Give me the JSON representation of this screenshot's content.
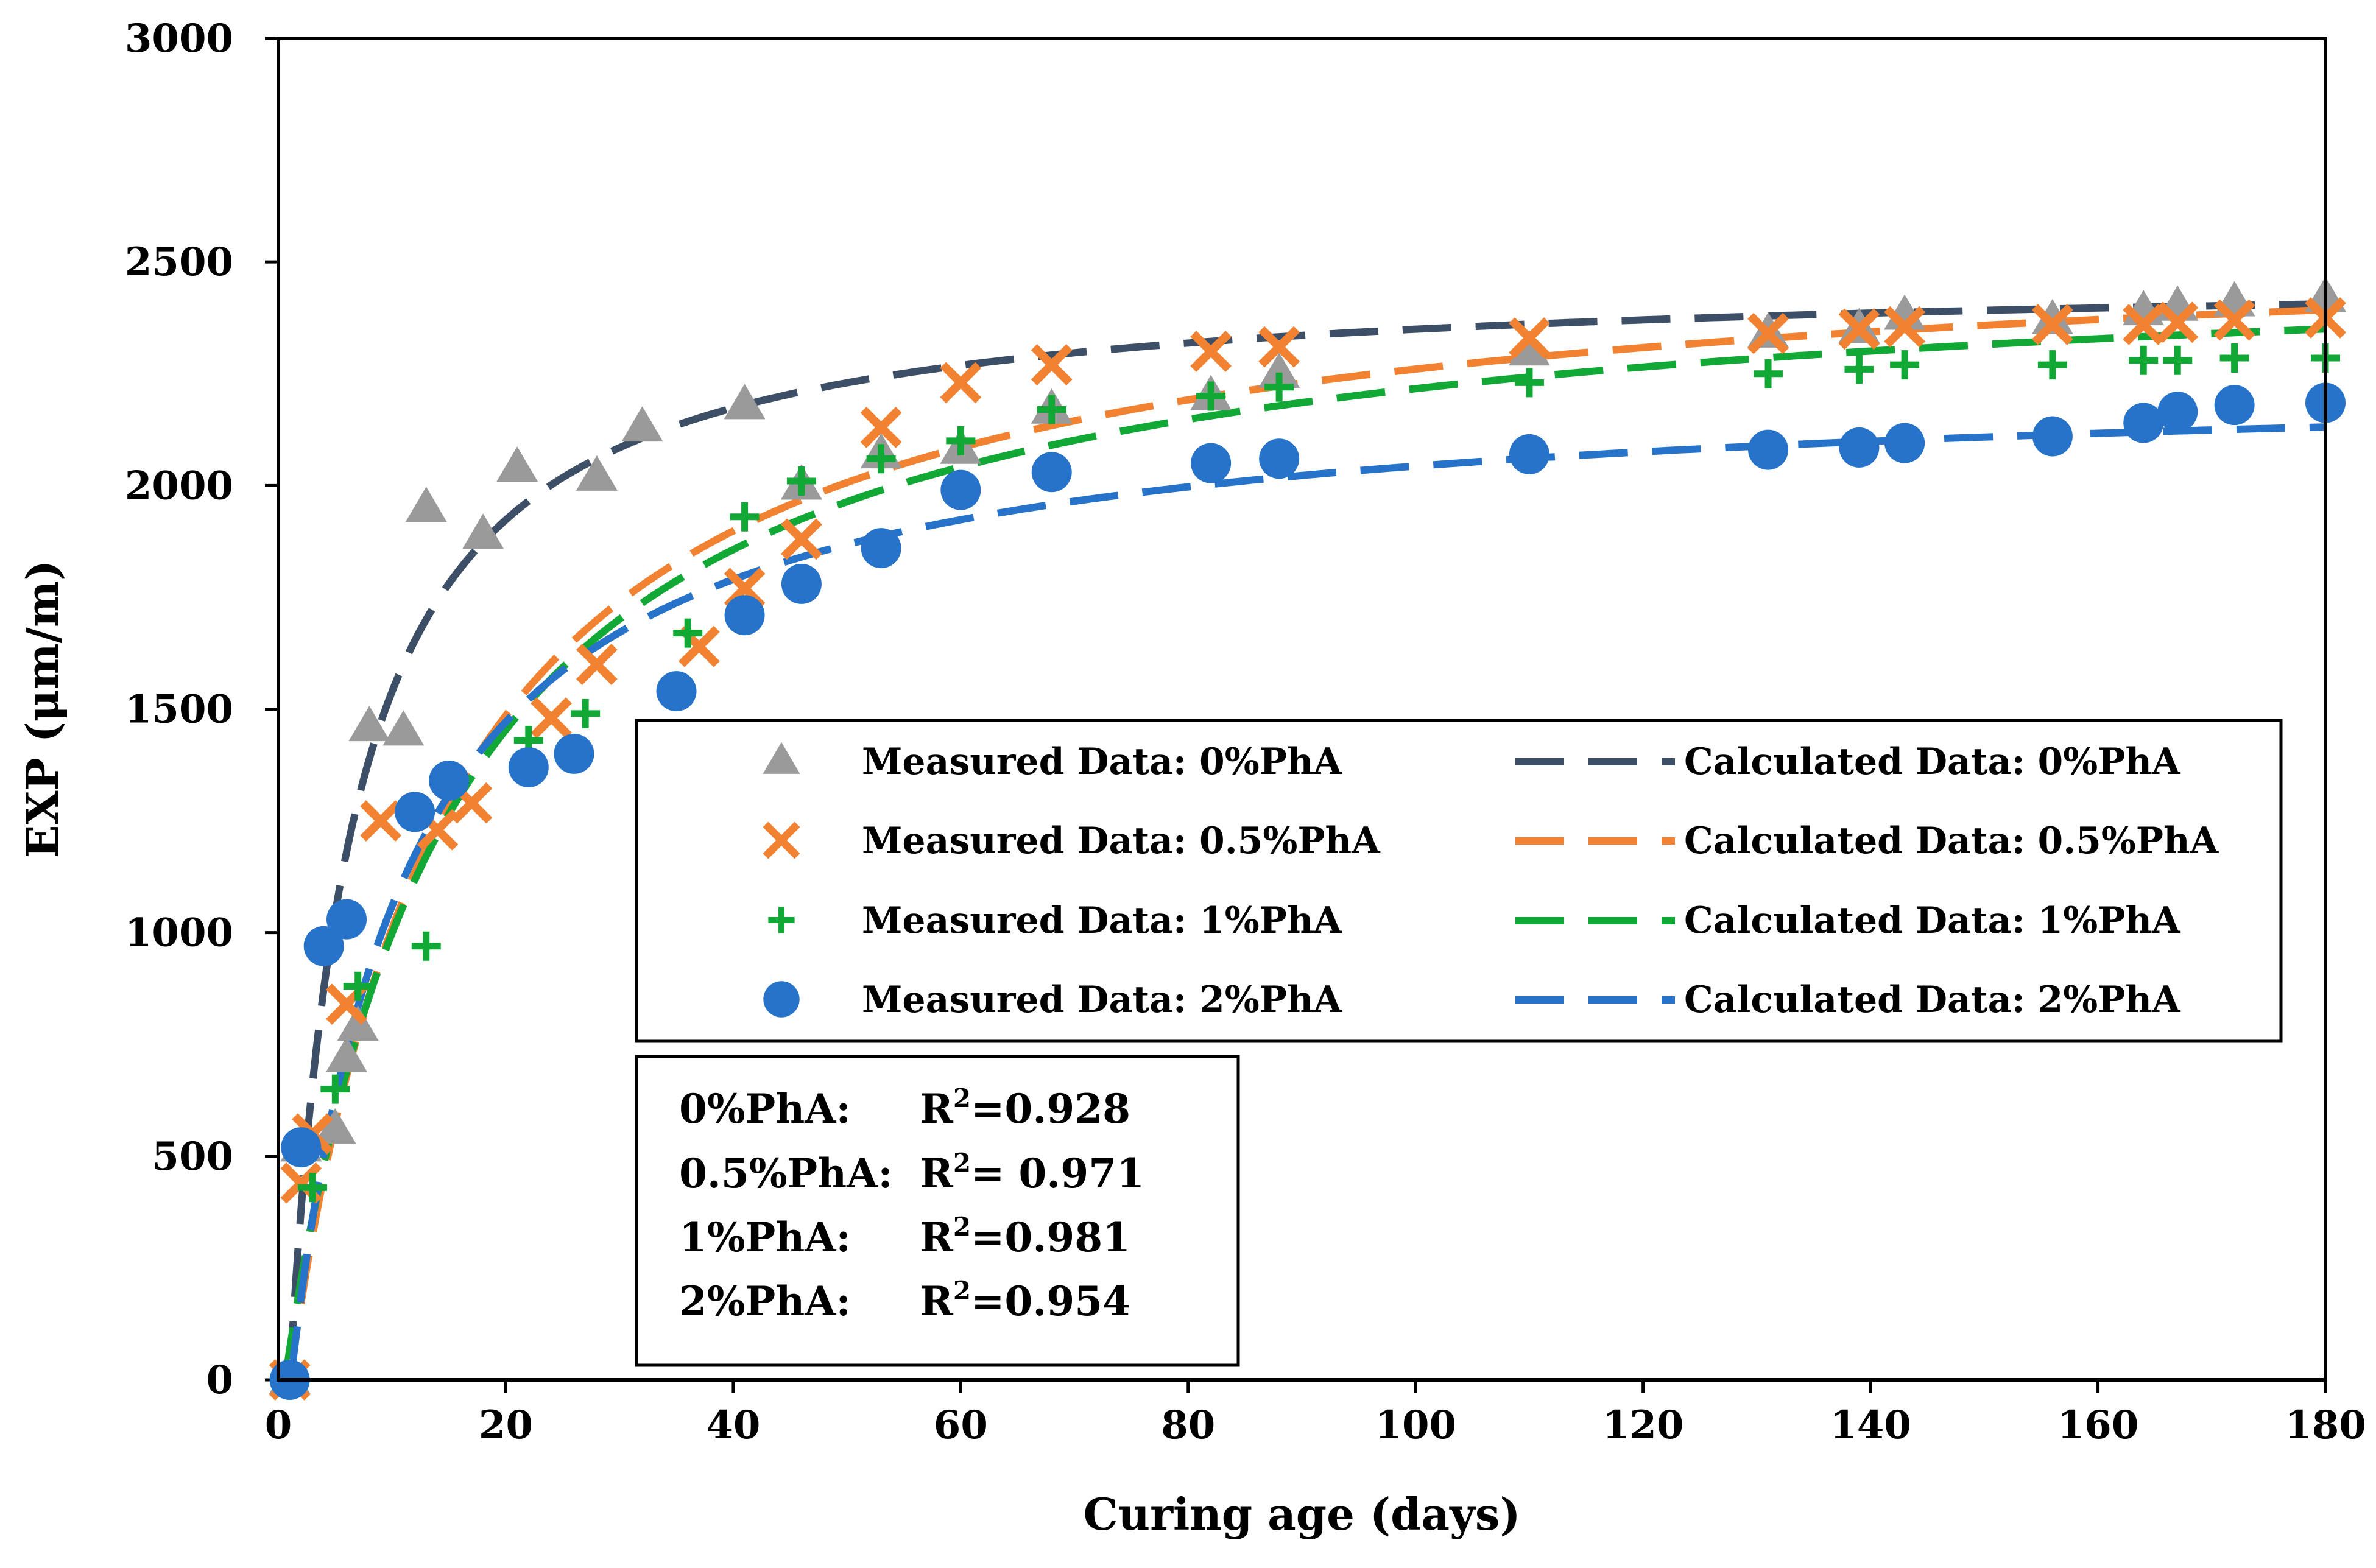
{
  "chart_data": {
    "type": "scatter",
    "title": "",
    "xlabel": "Curing age (days)",
    "ylabel": "EXP (μm/m)",
    "xlim": [
      0,
      180
    ],
    "ylim": [
      0,
      3000
    ],
    "xticks": [
      0,
      20,
      40,
      60,
      80,
      100,
      120,
      140,
      160,
      180
    ],
    "yticks": [
      0,
      500,
      1000,
      1500,
      2000,
      2500,
      3000
    ],
    "grid": false,
    "legend_position": "center-right",
    "series": [
      {
        "name": "Measured Data: 0%PhA",
        "kind": "measured",
        "marker": "triangle",
        "color": "#9a9a9a",
        "points": [
          [
            1,
            0
          ],
          [
            2,
            520
          ],
          [
            5,
            560
          ],
          [
            6,
            720
          ],
          [
            7,
            790
          ],
          [
            8,
            1460
          ],
          [
            11,
            1450
          ],
          [
            13,
            1950
          ],
          [
            18,
            1890
          ],
          [
            21,
            2040
          ],
          [
            28,
            2020
          ],
          [
            32,
            2130
          ],
          [
            41,
            2180
          ],
          [
            46,
            2000
          ],
          [
            53,
            2070
          ],
          [
            60,
            2080
          ],
          [
            68,
            2170
          ],
          [
            82,
            2200
          ],
          [
            88,
            2250
          ],
          [
            110,
            2300
          ],
          [
            131,
            2340
          ],
          [
            139,
            2350
          ],
          [
            143,
            2380
          ],
          [
            156,
            2370
          ],
          [
            164,
            2390
          ],
          [
            167,
            2400
          ],
          [
            172,
            2410
          ],
          [
            180,
            2420
          ]
        ]
      },
      {
        "name": "Measured Data: 0.5%PhA",
        "kind": "measured",
        "marker": "x",
        "color": "#f08232",
        "points": [
          [
            1,
            0
          ],
          [
            2,
            440
          ],
          [
            3,
            550
          ],
          [
            6,
            840
          ],
          [
            9,
            1250
          ],
          [
            14,
            1230
          ],
          [
            17,
            1290
          ],
          [
            24,
            1480
          ],
          [
            28,
            1600
          ],
          [
            37,
            1640
          ],
          [
            41,
            1770
          ],
          [
            46,
            1880
          ],
          [
            53,
            2130
          ],
          [
            60,
            2230
          ],
          [
            68,
            2270
          ],
          [
            82,
            2300
          ],
          [
            88,
            2310
          ],
          [
            110,
            2330
          ],
          [
            131,
            2340
          ],
          [
            139,
            2350
          ],
          [
            143,
            2355
          ],
          [
            156,
            2360
          ],
          [
            164,
            2360
          ],
          [
            167,
            2365
          ],
          [
            172,
            2370
          ],
          [
            180,
            2375
          ]
        ]
      },
      {
        "name": "Measured Data: 1%PhA",
        "kind": "measured",
        "marker": "plus",
        "color": "#12a835",
        "points": [
          [
            1,
            0
          ],
          [
            3,
            430
          ],
          [
            5,
            650
          ],
          [
            7,
            880
          ],
          [
            13,
            970
          ],
          [
            22,
            1430
          ],
          [
            27,
            1490
          ],
          [
            36,
            1670
          ],
          [
            41,
            1930
          ],
          [
            46,
            2010
          ],
          [
            53,
            2060
          ],
          [
            60,
            2100
          ],
          [
            68,
            2170
          ],
          [
            82,
            2200
          ],
          [
            88,
            2220
          ],
          [
            110,
            2230
          ],
          [
            131,
            2250
          ],
          [
            139,
            2260
          ],
          [
            143,
            2270
          ],
          [
            156,
            2270
          ],
          [
            164,
            2280
          ],
          [
            167,
            2280
          ],
          [
            172,
            2285
          ],
          [
            180,
            2285
          ]
        ]
      },
      {
        "name": "Measured Data: 2%PhA",
        "kind": "measured",
        "marker": "circle",
        "color": "#2673c9",
        "points": [
          [
            1,
            0
          ],
          [
            2,
            520
          ],
          [
            4,
            970
          ],
          [
            6,
            1030
          ],
          [
            12,
            1270
          ],
          [
            15,
            1340
          ],
          [
            22,
            1370
          ],
          [
            26,
            1400
          ],
          [
            35,
            1540
          ],
          [
            41,
            1710
          ],
          [
            46,
            1780
          ],
          [
            53,
            1860
          ],
          [
            60,
            1990
          ],
          [
            68,
            2030
          ],
          [
            82,
            2050
          ],
          [
            88,
            2060
          ],
          [
            110,
            2070
          ],
          [
            131,
            2080
          ],
          [
            139,
            2085
          ],
          [
            143,
            2095
          ],
          [
            156,
            2110
          ],
          [
            164,
            2140
          ],
          [
            167,
            2165
          ],
          [
            172,
            2180
          ],
          [
            180,
            2185
          ]
        ]
      },
      {
        "name": "Calculated Data: 0%PhA",
        "kind": "calculated",
        "color": "#3d4f66",
        "model": {
          "a": 2480,
          "b": 5.5,
          "x0": 1
        }
      },
      {
        "name": "Calculated Data: 0.5%PhA",
        "kind": "calculated",
        "color": "#f08232",
        "model": {
          "a": 2580,
          "b": 14,
          "x0": 1
        }
      },
      {
        "name": "Calculated Data: 1%PhA",
        "kind": "calculated",
        "color": "#12a835",
        "model": {
          "a": 2540,
          "b": 14.5,
          "x0": 0.6
        }
      },
      {
        "name": "Calculated Data: 2%PhA",
        "kind": "calculated",
        "color": "#2673c9",
        "model": {
          "a": 2250,
          "b": 10,
          "x0": 1.1
        }
      }
    ],
    "fit_stats": [
      {
        "label": "0%PhA:",
        "r2_prefix": "R",
        "r2_sup": "2",
        "r2_value": "=0.928"
      },
      {
        "label": "0.5%PhA:",
        "r2_prefix": "R",
        "r2_sup": "2",
        "r2_value": "= 0.971"
      },
      {
        "label": "1%PhA:",
        "r2_prefix": "R",
        "r2_sup": "2",
        "r2_value": "=0.981"
      },
      {
        "label": "2%PhA:",
        "r2_prefix": "R",
        "r2_sup": "2",
        "r2_value": "=0.954"
      }
    ]
  }
}
